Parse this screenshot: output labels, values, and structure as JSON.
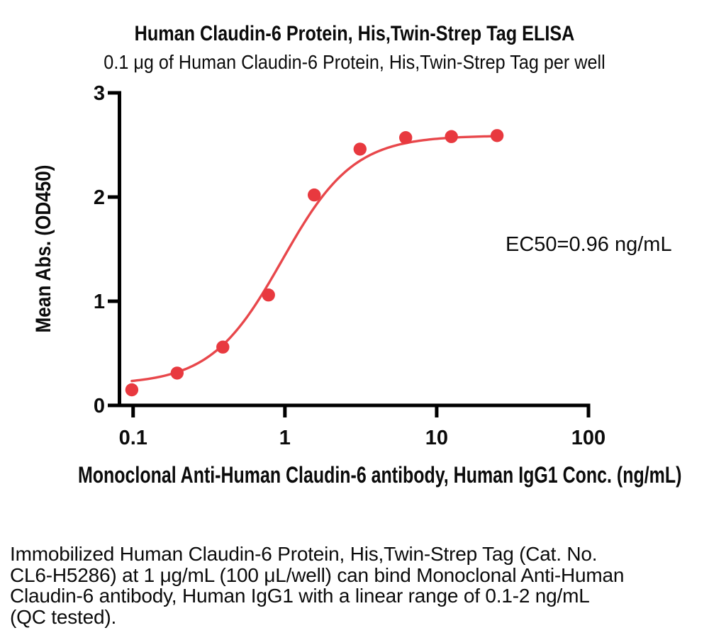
{
  "header": {
    "title": "Human Claudin-6 Protein, His,Twin-Strep Tag ELISA",
    "subtitle": "0.1 μg of Human Claudin-6 Protein, His,Twin-Strep Tag per well"
  },
  "chart_data": {
    "type": "scatter",
    "x": [
      0.098,
      0.195,
      0.39,
      0.78,
      1.56,
      3.125,
      6.25,
      12.5,
      25
    ],
    "y": [
      0.15,
      0.31,
      0.56,
      1.06,
      2.02,
      2.46,
      2.57,
      2.58,
      2.59
    ],
    "fit_curve": {
      "model": "4PL",
      "bottom": 0.2,
      "top": 2.59,
      "ec50": 0.96,
      "hill": 1.85,
      "x_start": 0.098,
      "x_end": 25
    },
    "annotation": "EC50=0.96 ng/mL",
    "xlabel": "Monoclonal Anti-Human Claudin-6 antibody, Human IgG1 Conc. (ng/mL)",
    "ylabel": "Mean Abs. (OD450)",
    "xscale": "log",
    "xlim": [
      0.08,
      100
    ],
    "ylim": [
      0,
      3
    ],
    "x_ticks": [
      0.1,
      1,
      10,
      100
    ],
    "x_tick_labels": [
      "0.1",
      "1",
      "10",
      "100"
    ],
    "y_ticks": [
      0,
      1,
      2,
      3
    ],
    "y_tick_labels": [
      "0",
      "1",
      "2",
      "3"
    ],
    "grid": false,
    "legend": "none",
    "colors": {
      "point": "#e8393f",
      "line": "#e8474b",
      "axis": "#000000",
      "text": "#0b0b0b"
    }
  },
  "description": {
    "lines": [
      "Immobilized Human Claudin-6 Protein, His,Twin-Strep Tag (Cat. No.",
      "CL6-H5286) at 1 μg/mL (100 μL/well) can bind Monoclonal Anti-Human",
      "Claudin-6 antibody, Human IgG1 with a linear range of 0.1-2 ng/mL",
      "(QC tested)."
    ]
  }
}
